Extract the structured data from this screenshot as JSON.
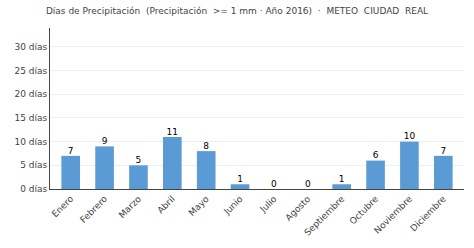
{
  "chart_data": {
    "type": "bar",
    "title": "Días de Precipitación  (Precipitación  >= 1 mm · Año 2016)  ·  METEO  CIUDAD  REAL",
    "categories": [
      "Enero",
      "Febrero",
      "Marzo",
      "Abril",
      "Mayo",
      "Junio",
      "Julio",
      "Agosto",
      "Septiembre",
      "Octubre",
      "Noviembre",
      "Diciembre"
    ],
    "values": [
      7,
      9,
      5,
      11,
      8,
      1,
      0,
      0,
      1,
      6,
      10,
      7
    ],
    "color": "#5b9bd5",
    "ylim": [
      0,
      34
    ],
    "yticks": [
      {
        "value": 0,
        "label": "0 días"
      },
      {
        "value": 5,
        "label": "5 días"
      },
      {
        "value": 10,
        "label": "10 días"
      },
      {
        "value": 15,
        "label": "15 días"
      },
      {
        "value": 20,
        "label": "20 días"
      },
      {
        "value": 25,
        "label": "25 días"
      },
      {
        "value": 30,
        "label": "30 días"
      }
    ],
    "grid": true,
    "data_labels": true
  }
}
